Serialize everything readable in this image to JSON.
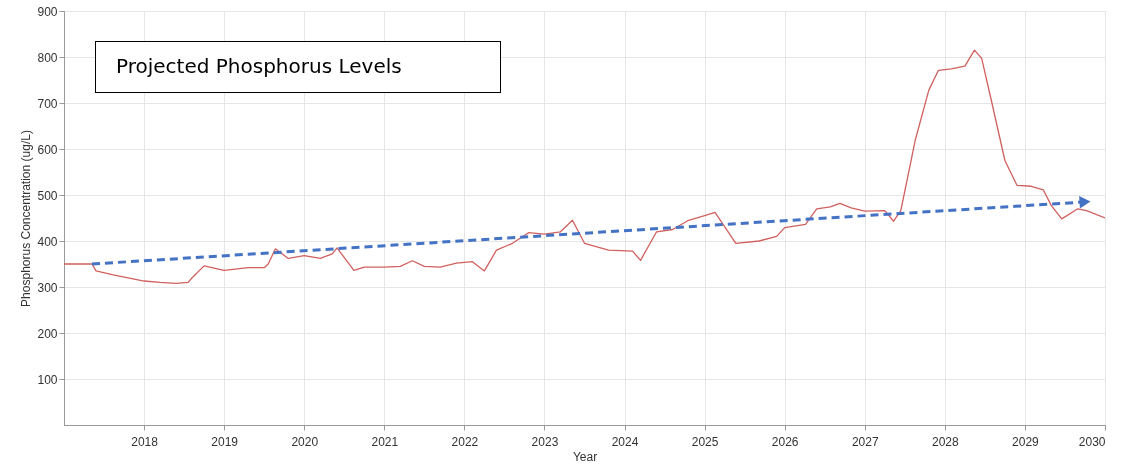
{
  "chart_data": {
    "type": "line",
    "title": "Projected Phosphorus Levels",
    "xlabel": "Year",
    "ylabel": "Phosphorus Concentration (ug/L)",
    "xlim": [
      2017,
      2030
    ],
    "xticks": [
      2018,
      2019,
      2020,
      2021,
      2022,
      2023,
      2024,
      2025,
      2026,
      2027,
      2028,
      2029,
      2030
    ],
    "ylim": [
      0,
      900
    ],
    "yticks": [
      100,
      200,
      300,
      400,
      500,
      600,
      700,
      800,
      900
    ],
    "grid": true,
    "series": [
      {
        "color": "#d0605e",
        "line_style": "solid",
        "x": [
          2017.0,
          2017.35,
          2017.4,
          2017.6,
          2017.8,
          2018.0,
          2018.2,
          2018.4,
          2018.55,
          2018.6,
          2018.75,
          2018.9,
          2019.0,
          2019.3,
          2019.5,
          2019.55,
          2019.64,
          2019.8,
          2020.0,
          2020.2,
          2020.35,
          2020.41,
          2020.62,
          2020.75,
          2021.0,
          2021.2,
          2021.35,
          2021.5,
          2021.7,
          2021.9,
          2022.1,
          2022.25,
          2022.4,
          2022.6,
          2022.8,
          2023.0,
          2023.2,
          2023.35,
          2023.5,
          2023.8,
          2024.1,
          2024.2,
          2024.4,
          2024.6,
          2024.8,
          2025.0,
          2025.13,
          2025.39,
          2025.68,
          2025.9,
          2026.0,
          2026.26,
          2026.4,
          2026.57,
          2026.69,
          2026.83,
          2027.0,
          2027.25,
          2027.36,
          2027.45,
          2027.63,
          2027.8,
          2027.92,
          2028.08,
          2028.25,
          2028.37,
          2028.46,
          2028.58,
          2028.75,
          2028.9,
          2029.08,
          2029.23,
          2029.33,
          2029.46,
          2029.66,
          2029.77,
          2030.0
        ],
        "values": [
          350,
          350,
          335,
          327,
          320,
          313,
          310,
          308,
          310,
          320,
          346,
          340,
          336,
          342,
          342,
          350,
          383,
          362,
          368,
          362,
          372,
          385,
          336,
          343,
          343,
          345,
          357,
          345,
          343,
          352,
          355,
          335,
          380,
          395,
          418,
          415,
          420,
          445,
          395,
          380,
          378,
          358,
          420,
          425,
          445,
          455,
          462,
          395,
          400,
          410,
          429,
          436,
          470,
          474,
          482,
          472,
          465,
          466,
          443,
          466,
          619,
          728,
          771,
          774,
          780,
          815,
          797,
          706,
          575,
          521,
          519,
          511,
          477,
          448,
          470,
          466,
          450
        ]
      },
      {
        "color": "#4472c4",
        "line_style": "dashed",
        "x": [
          2017.35,
          2029.75
        ],
        "values": [
          350,
          485
        ]
      }
    ]
  }
}
